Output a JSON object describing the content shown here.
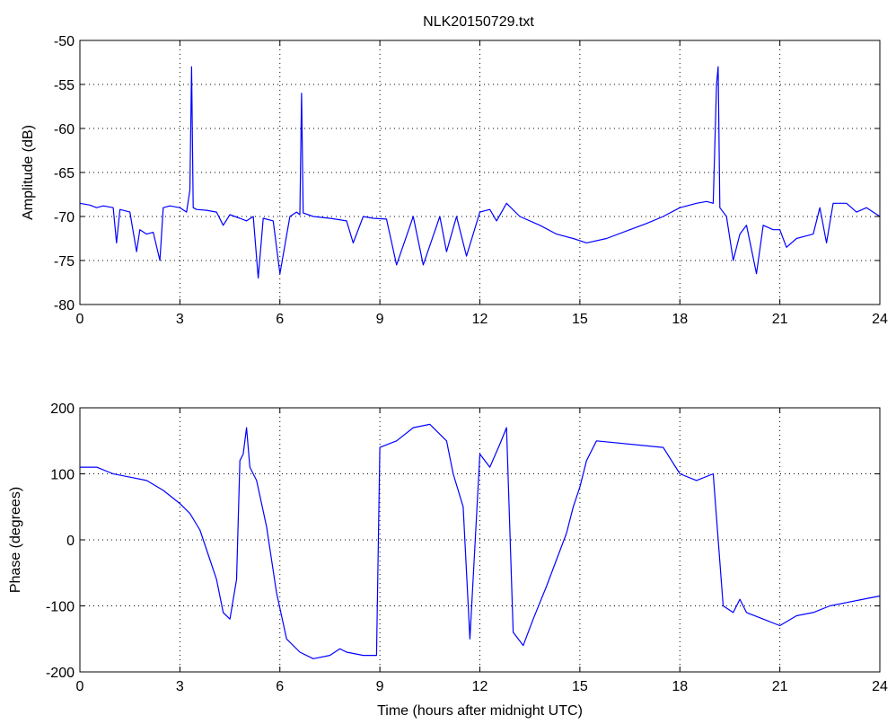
{
  "figure": {
    "title": "NLK20150729.txt"
  },
  "chart_data": [
    {
      "type": "line",
      "title": "NLK20150729.txt",
      "xlabel": "",
      "ylabel": "Amplitude (dB)",
      "xlim": [
        0,
        24
      ],
      "ylim": [
        -80,
        -50
      ],
      "xticks": [
        0,
        3,
        6,
        9,
        12,
        15,
        18,
        21,
        24
      ],
      "yticks": [
        -50,
        -55,
        -60,
        -65,
        -70,
        -75,
        -80
      ],
      "grid": true,
      "line_color": "#0000ff",
      "series": [
        {
          "x": [
            0,
            0.3,
            0.5,
            0.7,
            1.0,
            1.1,
            1.2,
            1.5,
            1.7,
            1.8,
            2.0,
            2.2,
            2.4,
            2.5,
            2.7,
            3.0,
            3.2,
            3.3,
            3.35,
            3.4,
            3.5,
            3.8,
            4.1,
            4.3,
            4.5,
            4.8,
            5.0,
            5.2,
            5.35,
            5.5,
            5.8,
            6.0,
            6.3,
            6.5,
            6.6,
            6.65,
            6.7,
            7.0,
            7.5,
            8.0,
            8.2,
            8.5,
            8.8,
            9.2,
            9.5,
            10.0,
            10.3,
            10.8,
            11.0,
            11.3,
            11.6,
            12.0,
            12.3,
            12.5,
            12.8,
            13.2,
            13.8,
            14.3,
            14.8,
            15.2,
            15.8,
            16.5,
            17.0,
            17.5,
            18.0,
            18.5,
            18.8,
            19.0,
            19.1,
            19.15,
            19.2,
            19.4,
            19.6,
            19.8,
            20.0,
            20.3,
            20.5,
            20.8,
            21.0,
            21.2,
            21.5,
            21.8,
            22.0,
            22.2,
            22.4,
            22.6,
            23.0,
            23.3,
            23.6,
            24.0
          ],
          "y": [
            -68.5,
            -68.7,
            -69.0,
            -68.8,
            -69.0,
            -73.0,
            -69.2,
            -69.5,
            -74.0,
            -71.5,
            -72.0,
            -71.8,
            -75.0,
            -69.0,
            -68.8,
            -69.0,
            -69.5,
            -67.0,
            -53.0,
            -69.0,
            -69.2,
            -69.3,
            -69.5,
            -71.0,
            -69.8,
            -70.2,
            -70.5,
            -70.0,
            -77.0,
            -70.2,
            -70.5,
            -76.5,
            -70.0,
            -69.5,
            -69.8,
            -56.0,
            -69.6,
            -70.0,
            -70.2,
            -70.5,
            -73.0,
            -70.0,
            -70.2,
            -70.3,
            -75.5,
            -70.0,
            -75.5,
            -70.0,
            -74.0,
            -70.0,
            -74.5,
            -69.5,
            -69.2,
            -70.5,
            -68.5,
            -70.0,
            -71.0,
            -72.0,
            -72.5,
            -73.0,
            -72.5,
            -71.5,
            -70.8,
            -70.0,
            -69.0,
            -68.5,
            -68.3,
            -68.5,
            -55.0,
            -53.0,
            -69.0,
            -70.0,
            -75.0,
            -72.0,
            -71.0,
            -76.5,
            -71.0,
            -71.5,
            -71.5,
            -73.5,
            -72.5,
            -72.2,
            -72.0,
            -69.0,
            -73.0,
            -68.5,
            -68.5,
            -69.5,
            -69.0,
            -70.0
          ]
        }
      ]
    },
    {
      "type": "line",
      "title": "",
      "xlabel": "Time (hours after midnight UTC)",
      "ylabel": "Phase (degrees)",
      "xlim": [
        0,
        24
      ],
      "ylim": [
        -200,
        200
      ],
      "xticks": [
        0,
        3,
        6,
        9,
        12,
        15,
        18,
        21,
        24
      ],
      "yticks": [
        200,
        100,
        0,
        -100,
        -200
      ],
      "grid": true,
      "line_color": "#0000ff",
      "series": [
        {
          "x": [
            0,
            0.5,
            1.0,
            1.5,
            2.0,
            2.5,
            3.0,
            3.3,
            3.6,
            3.9,
            4.1,
            4.3,
            4.5,
            4.7,
            4.8,
            4.9,
            5.0,
            5.1,
            5.3,
            5.6,
            5.9,
            6.2,
            6.6,
            7.0,
            7.5,
            7.8,
            8.0,
            8.5,
            8.9,
            9.0,
            9.5,
            10.0,
            10.5,
            11.0,
            11.2,
            11.5,
            11.7,
            12.0,
            12.3,
            12.6,
            12.8,
            13.0,
            13.3,
            13.6,
            14.0,
            14.3,
            14.6,
            14.8,
            15.0,
            15.2,
            15.5,
            17.5,
            18.0,
            18.5,
            19.0,
            19.3,
            19.6,
            19.8,
            20.0,
            20.5,
            21.0,
            21.5,
            22.0,
            22.5,
            23.0,
            23.5,
            24.0
          ],
          "y": [
            110,
            110,
            100,
            95,
            90,
            75,
            55,
            40,
            15,
            -30,
            -60,
            -110,
            -120,
            -60,
            120,
            130,
            170,
            110,
            90,
            20,
            -80,
            -150,
            -170,
            -180,
            -175,
            -165,
            -170,
            -175,
            -175,
            140,
            150,
            170,
            175,
            150,
            100,
            50,
            -150,
            130,
            110,
            145,
            170,
            -140,
            -160,
            -120,
            -70,
            -30,
            10,
            50,
            80,
            120,
            150,
            140,
            100,
            90,
            100,
            -100,
            -110,
            -90,
            -110,
            -120,
            -130,
            -115,
            -110,
            -100,
            -95,
            -90,
            -85
          ]
        }
      ]
    }
  ]
}
